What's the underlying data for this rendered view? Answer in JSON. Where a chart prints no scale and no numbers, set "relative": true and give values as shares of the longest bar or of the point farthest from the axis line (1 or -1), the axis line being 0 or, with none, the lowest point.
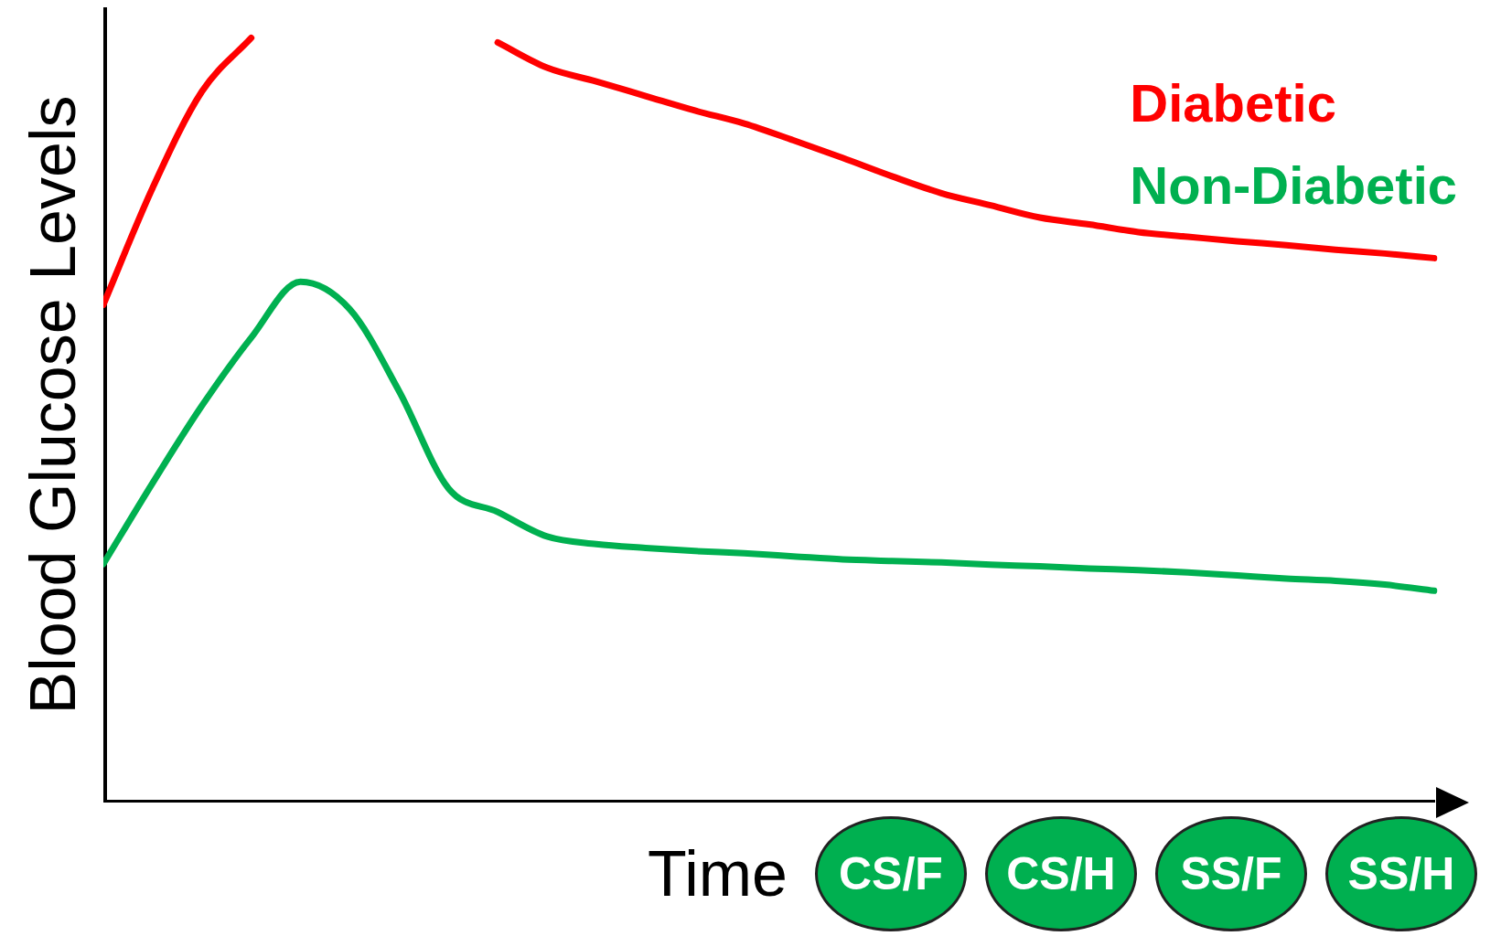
{
  "chart_data": {
    "type": "line",
    "relative": true,
    "xlabel": "Time",
    "ylabel": "Blood Glucose Levels",
    "legend": "top right",
    "marker": "none",
    "line_style": "solid",
    "grid": false,
    "categories": [
      null,
      null,
      null,
      null,
      null,
      null,
      null,
      null,
      null,
      null,
      null,
      null,
      null,
      null,
      null,
      null,
      null,
      null,
      null,
      null,
      null,
      null,
      null,
      null,
      null,
      null,
      null,
      null
    ],
    "series": [
      {
        "name": "Diabetic",
        "color": "#ff0000",
        "values": [
          0.651,
          0.804,
          0.93,
          1,
          null,
          null,
          null,
          null,
          0.994,
          0.961,
          0.943,
          0.924,
          0.905,
          0.888,
          0.866,
          0.843,
          0.819,
          0.797,
          0.781,
          0.765,
          0.756,
          0.746,
          0.74,
          0.734,
          0.729,
          0.723,
          0.718,
          0.712
        ]
      },
      {
        "name": "Non-Diabetic",
        "color": "#00b050",
        "values": [
          0.312,
          0.418,
          0.519,
          0.608,
          0.681,
          0.645,
          0.538,
          0.411,
          0.38,
          0.348,
          0.338,
          0.333,
          0.329,
          0.326,
          0.322,
          0.318,
          0.316,
          0.314,
          0.311,
          0.309,
          0.306,
          0.304,
          0.301,
          0.297,
          0.293,
          0.29,
          0.285,
          0.277
        ]
      }
    ],
    "annotations": [
      "CS/F",
      "CS/H",
      "SS/F",
      "SS/H"
    ]
  }
}
